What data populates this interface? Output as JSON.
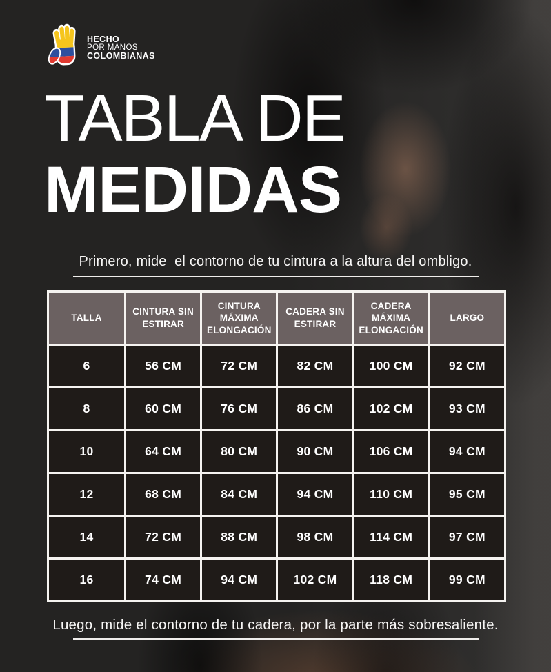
{
  "page": {
    "background_color": "#242322",
    "text_color": "#ffffff"
  },
  "logo": {
    "icon": "hand-colombian-flag-icon",
    "line1": "HECHO",
    "line2": "POR MANOS",
    "line3": "COLOMBIANAS",
    "colors": {
      "yellow": "#F5C51D",
      "blue": "#2D4F9E",
      "red": "#E03A31",
      "outline": "#ffffff"
    }
  },
  "title": {
    "line1": "TABLA DE",
    "line2": "MEDIDAS"
  },
  "intro": {
    "text": "Primero, mide  el contorno de tu cintura a la altura del ombligo."
  },
  "table": {
    "header_bg": "#6b6161",
    "cell_bg": "#1f1b18",
    "border_color": "#f5f3f0",
    "columns": [
      "TALLA",
      "CINTURA SIN ESTIRAR",
      "CINTURA MÁXIMA ELONGACIÓN",
      "CADERA SIN ESTIRAR",
      "CADERA MÁXIMA ELONGACIÓN",
      "LARGO"
    ],
    "rows": [
      [
        "6",
        "56 CM",
        "72 CM",
        "82 CM",
        "100 CM",
        "92 CM"
      ],
      [
        "8",
        "60 CM",
        "76 CM",
        "86 CM",
        "102 CM",
        "93 CM"
      ],
      [
        "10",
        "64 CM",
        "80 CM",
        "90 CM",
        "106 CM",
        "94 CM"
      ],
      [
        "12",
        "68 CM",
        "84 CM",
        "94 CM",
        "110 CM",
        "95 CM"
      ],
      [
        "14",
        "72 CM",
        "88 CM",
        "98 CM",
        "114 CM",
        "97 CM"
      ],
      [
        "16",
        "74 CM",
        "94 CM",
        "102 CM",
        "118 CM",
        "99 CM"
      ]
    ]
  },
  "outro": {
    "text": "Luego, mide el contorno de tu cadera, por la parte más sobresaliente."
  }
}
